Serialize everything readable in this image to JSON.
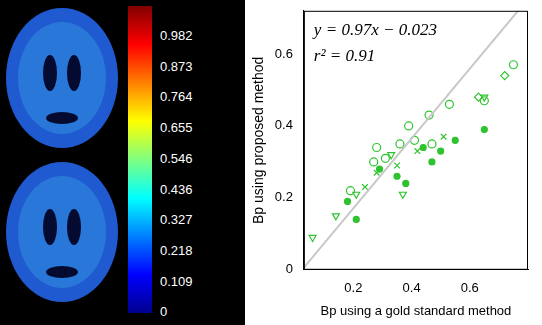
{
  "chart_data": {
    "type": "scatter",
    "x_label": "Bp using a gold standard method",
    "y_label": "Bp using proposed method",
    "annotations": [
      "y = 0.97x − 0.023",
      "r² = 0.91"
    ],
    "xlim": [
      0.03,
      0.8
    ],
    "xticks": [
      0.2,
      0.4,
      0.6
    ],
    "ylim": [
      0,
      0.72
    ],
    "yticks": [
      0,
      0.2,
      0.4,
      0.6
    ],
    "grid": false,
    "fit_line": {
      "slope": 0.97,
      "intercept": -0.023,
      "color": "#c8c8c8"
    },
    "series": [
      {
        "marker": "circle",
        "color": "#2fc42f",
        "x": [
          0.46,
          0.53,
          0.36,
          0.31,
          0.27,
          0.41,
          0.47,
          0.65,
          0.75,
          0.39,
          0.19,
          0.28
        ],
        "values": [
          0.43,
          0.46,
          0.35,
          0.31,
          0.3,
          0.36,
          0.35,
          0.47,
          0.57,
          0.4,
          0.22,
          0.34
        ]
      },
      {
        "marker": "dot",
        "color": "#2fc42f",
        "x": [
          0.65,
          0.5,
          0.38,
          0.21,
          0.29,
          0.35,
          0.44,
          0.55,
          0.47,
          0.18
        ],
        "values": [
          0.39,
          0.33,
          0.24,
          0.14,
          0.28,
          0.26,
          0.34,
          0.36,
          0.3,
          0.19
        ]
      },
      {
        "marker": "triangle_down",
        "color": "#2fc42f",
        "x": [
          0.06,
          0.14,
          0.21,
          0.37,
          0.65,
          0.33
        ],
        "values": [
          0.09,
          0.15,
          0.21,
          0.21,
          0.48,
          0.32
        ]
      },
      {
        "marker": "x",
        "color": "#2fc42f",
        "x": [
          0.24,
          0.35,
          0.42,
          0.51,
          0.28
        ],
        "values": [
          0.23,
          0.29,
          0.33,
          0.37,
          0.27
        ]
      },
      {
        "marker": "diamond",
        "color": "#2fc42f",
        "x": [
          0.72,
          0.63
        ],
        "values": [
          0.54,
          0.48
        ]
      }
    ]
  },
  "colorbar": {
    "range": [
      0,
      1.09
    ],
    "ticks": [
      0,
      0.109,
      0.218,
      0.327,
      0.436,
      0.546,
      0.655,
      0.764,
      0.873,
      0.982
    ]
  }
}
